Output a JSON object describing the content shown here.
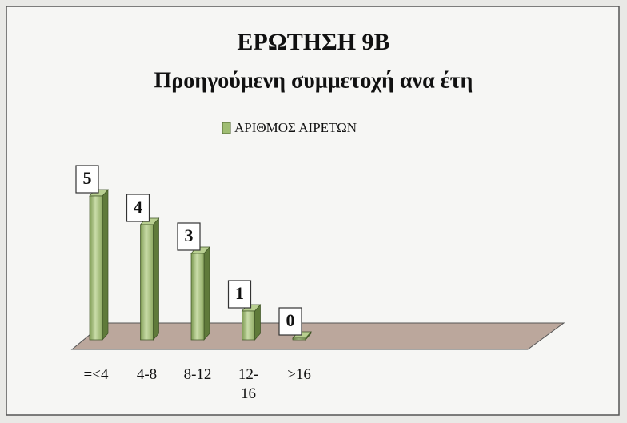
{
  "chart_data": {
    "type": "bar3d",
    "title": "ΕΡΩΤΗΣΗ 9Β",
    "subtitle": "Προηγούμενη συμμετοχή ανα έτη",
    "categories": [
      "=<4",
      "4-8",
      "8-12",
      "12-16",
      ">16"
    ],
    "series": [
      {
        "name": "ΑΡΙΘΜΟΣ ΑΙΡΕΤΩΝ",
        "color": "#9fbd72",
        "values": [
          5,
          4,
          3,
          1,
          0
        ]
      }
    ],
    "legend": "top"
  }
}
